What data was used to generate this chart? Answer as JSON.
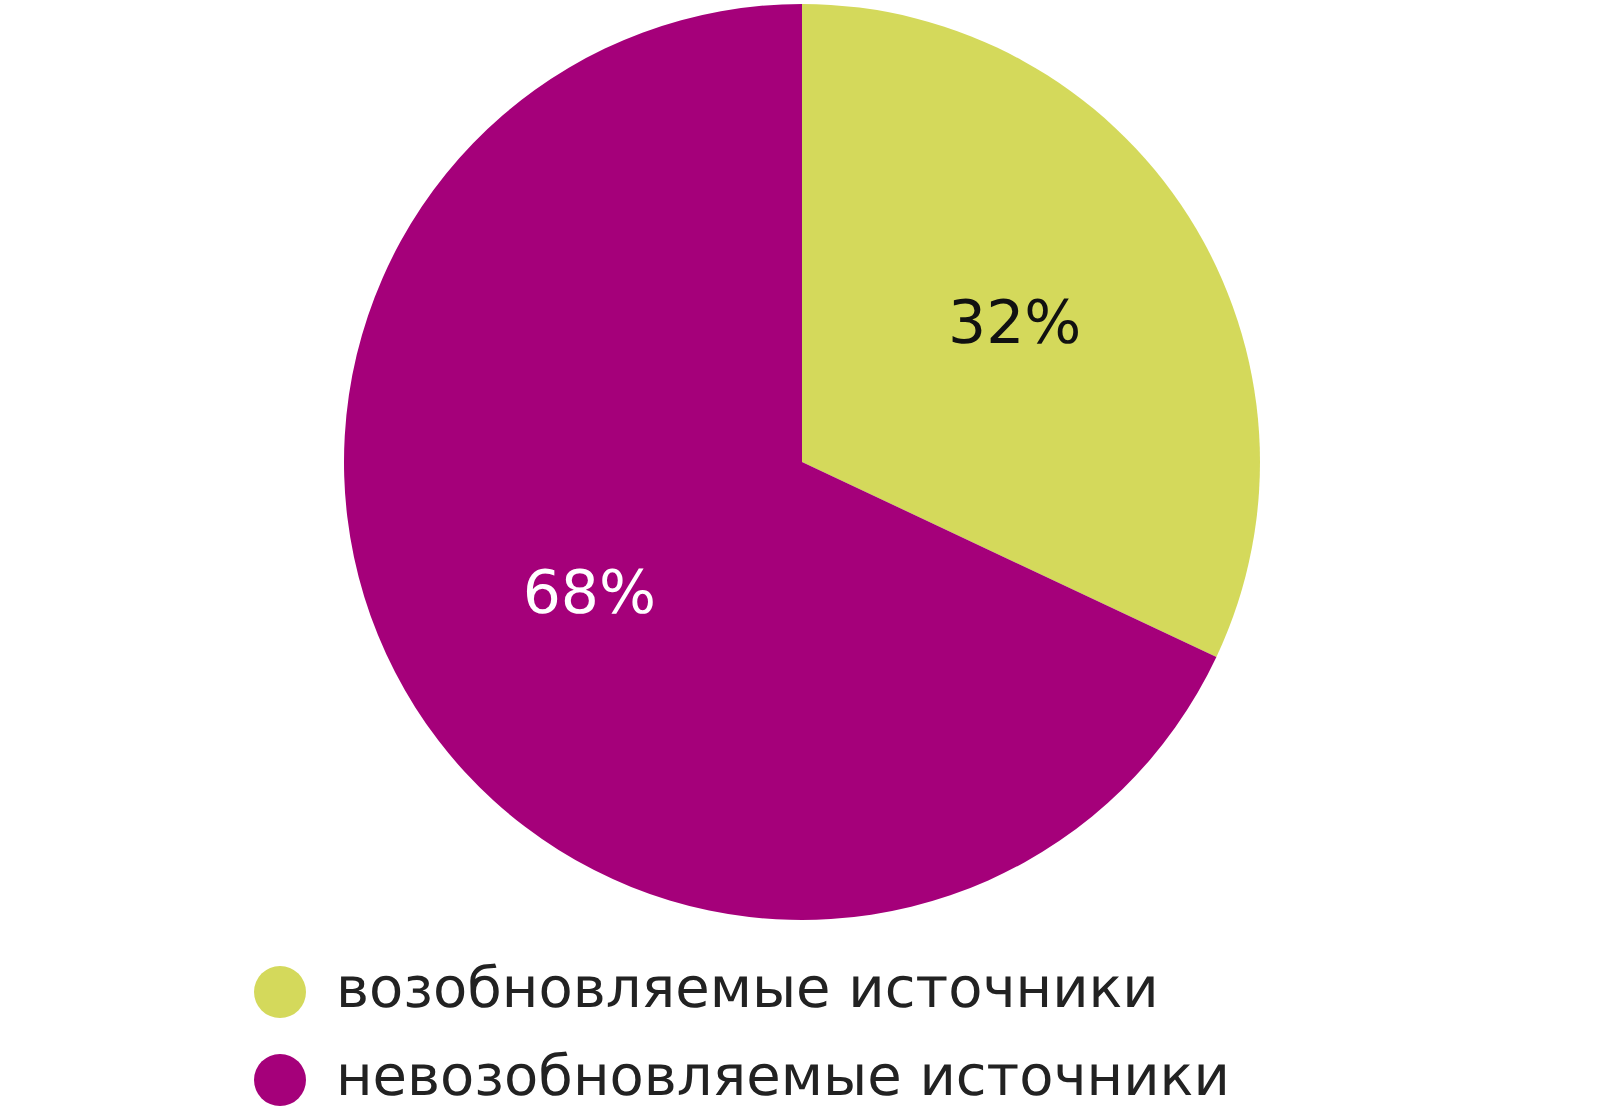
{
  "chart_data": {
    "type": "pie",
    "categories": [
      "возобновляемые источники",
      "невозобновляемые источники"
    ],
    "values": [
      32,
      68
    ],
    "colors": [
      "#d4d95b",
      "#a5007a"
    ],
    "value_labels": [
      "32%",
      "68%"
    ],
    "legend": "bottom"
  }
}
